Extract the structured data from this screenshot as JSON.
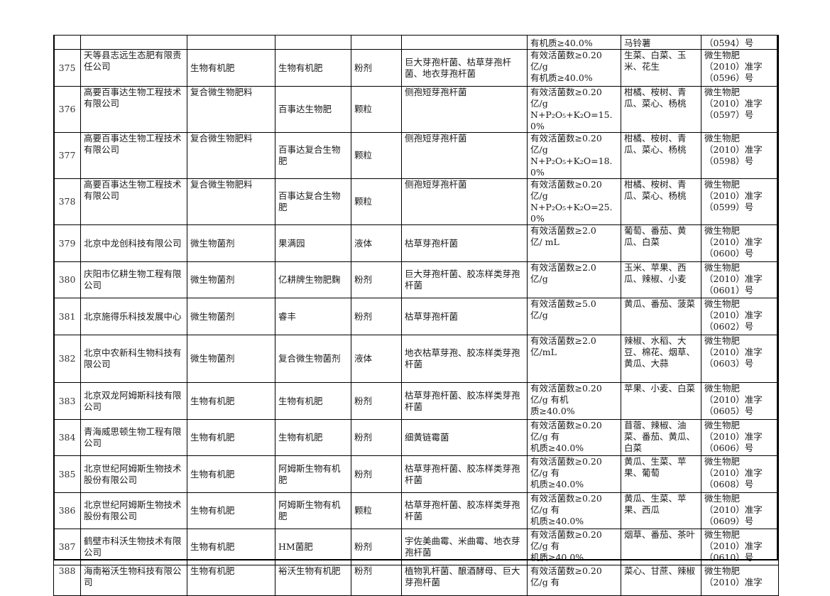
{
  "top_row": {
    "spec": "有机质≥40.0%",
    "crops": "马铃薯",
    "reg": "（0594）号"
  },
  "rows": [
    {
      "num": "375",
      "company": "天等县志远生态肥有限责任公司",
      "ptype": "生物有机肥",
      "pname": "生物有机肥",
      "form": "粉剂",
      "strain": "巨大芽孢杆菌、枯草芽孢杆菌、地衣芽孢杆菌",
      "spec1": "有效活菌数≥0.20",
      "spec2": "亿/g",
      "spec3": "有机质≥40.0%",
      "crops": "生菜、白菜、玉米、花生",
      "reg1": "微生物肥",
      "reg2": "（2010）准字",
      "reg3": "（0596）号"
    },
    {
      "num": "376",
      "company": "高要百事达生物工程技术有限公司",
      "ptype": "复合微生物肥料",
      "pname": "百事达生物肥",
      "form": "颗粒",
      "strain": "侧孢短芽孢杆菌",
      "spec1": "有效活菌数≥0.20",
      "spec2": "亿/g",
      "spec3": "N+P₂O₅+K₂O=15.0%",
      "crops": "柑橘、桉树、青瓜、菜心、杨桃",
      "reg1": "微生物肥",
      "reg2": "（2010）准字",
      "reg3": "（0597）号"
    },
    {
      "num": "377",
      "company": "高要百事达生物工程技术有限公司",
      "ptype": "复合微生物肥料",
      "pname": "百事达复合生物肥",
      "form": "颗粒",
      "strain": "侧孢短芽孢杆菌",
      "spec1": "有效活菌数≥0.20",
      "spec2": "亿/g",
      "spec3": "N+P₂O₅+K₂O=18.0%",
      "crops": "柑橘、桉树、青瓜、菜心、杨桃",
      "reg1": "微生物肥",
      "reg2": "（2010）准字",
      "reg3": "（0598）号"
    },
    {
      "num": "378",
      "company": "高要百事达生物工程技术有限公司",
      "ptype": "复合微生物肥料",
      "pname": "百事达复合生物肥",
      "form": "颗粒",
      "strain": "侧孢短芽孢杆菌",
      "spec1": "有效活菌数≥0.20",
      "spec2": "亿/g",
      "spec3": "N+P₂O₅+K₂O=25.0%",
      "crops": "柑橘、桉树、青瓜、菜心、杨桃",
      "reg1": "微生物肥",
      "reg2": "（2010）准字",
      "reg3": "（0599）号"
    },
    {
      "num": "379",
      "company": "北京中龙创科技有限公司",
      "ptype": "微生物菌剂",
      "pname": "果满园",
      "form": "液体",
      "strain": "枯草芽孢杆菌",
      "spec1": "有效活菌数≥2.0",
      "spec2": "亿/ mL",
      "spec3": "",
      "crops": "葡萄、番茄、黄瓜、白菜",
      "reg1": "微生物肥",
      "reg2": "（2010）准字",
      "reg3": "（0600）号"
    },
    {
      "num": "380",
      "company": "庆阳市亿耕生物工程有限公司",
      "ptype": "微生物菌剂",
      "pname": "亿耕牌生物肥麴",
      "form": "粉剂",
      "strain": "巨大芽孢杆菌、胶冻样类芽孢杆菌",
      "spec1": "有效活菌数≥2.0",
      "spec2": "亿/g",
      "spec3": "",
      "crops": "玉米、苹果、西瓜、辣椒、小麦",
      "reg1": "微生物肥",
      "reg2": "（2010）准字",
      "reg3": "（0601）号"
    },
    {
      "num": "381",
      "company": "北京施得乐科技发展中心",
      "ptype": "微生物菌剂",
      "pname": "睿丰",
      "form": "粉剂",
      "strain": "枯草芽孢杆菌",
      "spec1": "有效活菌数≥5.0",
      "spec2": "亿/g",
      "spec3": "",
      "crops": "黄瓜、番茄、菠菜",
      "reg1": "微生物肥",
      "reg2": "（2010）准字",
      "reg3": "（0602）号"
    },
    {
      "num": "382",
      "company": "北京中农新科生物科技有限公司",
      "ptype": "微生物菌剂",
      "pname": "复合微生物菌剂",
      "form": "液体",
      "strain": "地衣枯草芽孢、胶冻样类芽孢杆菌",
      "spec1": "有效活菌数≥2.0",
      "spec2": "亿/mL",
      "spec3": "",
      "crops": "辣椒、水稻、大豆、棉花、烟草、黄瓜、大蒜",
      "reg1": "微生物肥",
      "reg2": "（2010）准字",
      "reg3": "（0603）号"
    },
    {
      "num": "383",
      "company": "北京双龙阿姆斯科技有限公司",
      "ptype": "生物有机肥",
      "pname": "生物有机肥",
      "form": "粉剂",
      "strain": "枯草芽孢杆菌、胶冻样类芽孢杆菌",
      "spec1": "有效活菌数≥0.20",
      "spec2": "亿/g 有机",
      "spec3": "质≥40.0%",
      "crops": "苹果、小麦、白菜",
      "reg1": "微生物肥",
      "reg2": "（2010）准字",
      "reg3": "（0605）号"
    },
    {
      "num": "384",
      "company": "青海威思顿生物工程有限公司",
      "ptype": "生物有机肥",
      "pname": "生物有机肥",
      "form": "粉剂",
      "strain": "细黄链霉菌",
      "spec1": "有效活菌数≥0.20",
      "spec2": "亿/g 有",
      "spec3": "机质≥40.0%",
      "crops": "苜蓿、辣椒、油菜、番茄、黄瓜、白菜",
      "reg1": "微生物肥",
      "reg2": "（2010）准字",
      "reg3": "（0606）号"
    },
    {
      "num": "385",
      "company": "北京世纪阿姆斯生物技术股份有限公司",
      "ptype": "生物有机肥",
      "pname": "阿姆斯生物有机肥",
      "form": "粉剂",
      "strain": "枯草芽孢杆菌、胶冻样类芽孢杆菌",
      "spec1": "有效活菌数≥0.20",
      "spec2": "亿/g 有",
      "spec3": "机质≥40.0%",
      "crops": "黄瓜、生菜、苹果、葡萄",
      "reg1": "微生物肥",
      "reg2": "（2010）准字",
      "reg3": "（0608）号"
    },
    {
      "num": "386",
      "company": "北京世纪阿姆斯生物技术股份有限公司",
      "ptype": "生物有机肥",
      "pname": "阿姆斯生物有机肥",
      "form": "颗粒",
      "strain": "枯草芽孢杆菌、胶冻样类芽孢杆菌",
      "spec1": "有效活菌数≥0.20",
      "spec2": "亿/g 有",
      "spec3": "机质≥40.0%",
      "crops": "黄瓜、生菜、苹果、西瓜",
      "reg1": "微生物肥",
      "reg2": "（2010）准字",
      "reg3": "（0609）号"
    },
    {
      "num": "387",
      "company": "鹤壁市科沃生物技术有限公司",
      "ptype": "生物有机肥",
      "pname": "HM菌肥",
      "form": "粉剂",
      "strain": "宇佐美曲霉、米曲霉、地衣芽孢杆菌",
      "spec1": "有效活菌数≥0.20",
      "spec2": "亿/g 有",
      "spec3": "机质≥40.0%",
      "crops": "烟草、番茄、茶叶",
      "reg1": "微生物肥",
      "reg2": "（2010）准字",
      "reg3": "（0610）号"
    },
    {
      "num": "388",
      "company": "海南裕沃生物科技有限公司",
      "ptype": "生物有机肥",
      "pname": "裕沃生物有机肥",
      "form": "粉剂",
      "strain": "植物乳杆菌、酿酒酵母、巨大芽孢杆菌",
      "spec1": "有效活菌数≥0.20",
      "spec2": "亿/g 有",
      "spec3": "",
      "crops": "菜心、甘蔗、辣椒",
      "reg1": "微生物肥",
      "reg2": "（2010）准字",
      "reg3": ""
    }
  ]
}
